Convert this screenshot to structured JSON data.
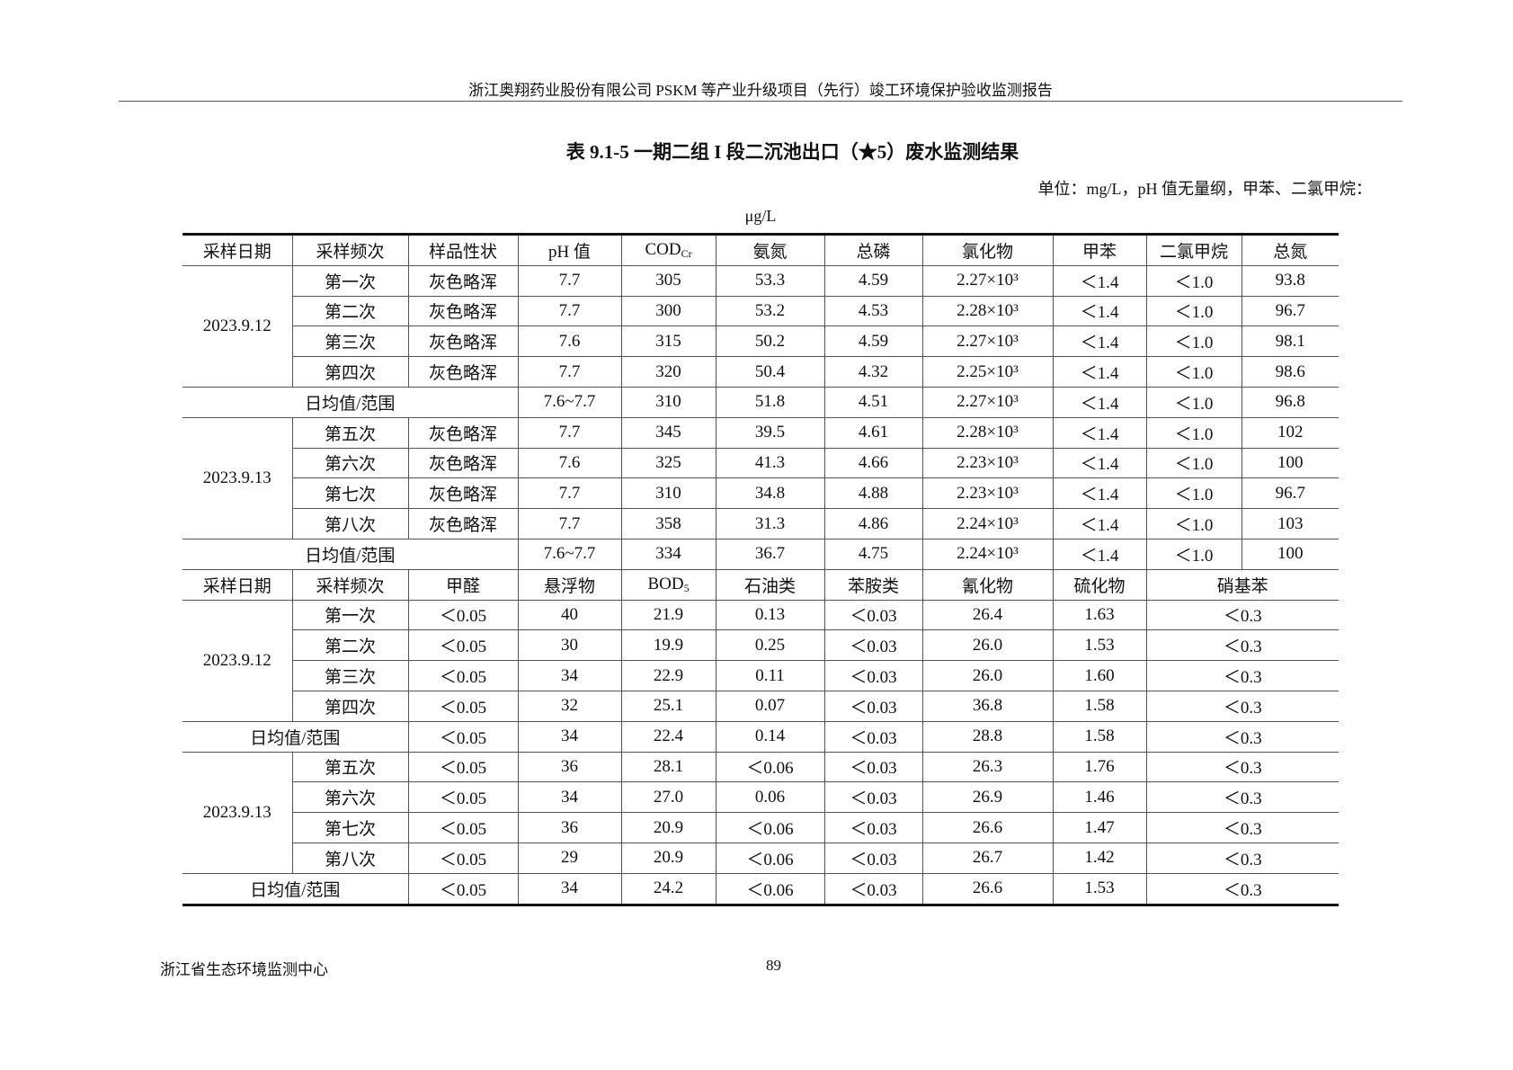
{
  "header": {
    "text": "浙江奥翔药业股份有限公司 PSKM 等产业升级项目（先行）竣工环境保护验收监测报告"
  },
  "title": "表 9.1-5  一期二组 I 段二沉池出口（★5）废水监测结果",
  "unit": {
    "line1": "单位：mg/L，pH 值无量纲，甲苯、二氯甲烷：",
    "line2": "μg/L"
  },
  "sections": [
    {
      "headers": [
        {
          "text": "采样日期"
        },
        {
          "text": "采样频次"
        },
        {
          "text": "样品性状"
        },
        {
          "text": "pH 值"
        },
        {
          "text": "COD",
          "sub": "Cr"
        },
        {
          "text": "氨氮"
        },
        {
          "text": "总磷"
        },
        {
          "text": "氯化物"
        },
        {
          "text": "甲苯"
        },
        {
          "text": "二氯甲烷"
        },
        {
          "text": "总氮"
        }
      ],
      "avg_span": 3,
      "groups": [
        {
          "date": "2023.9.12",
          "rows": [
            [
              "第一次",
              "灰色略浑",
              "7.7",
              "305",
              "53.3",
              "4.59",
              "2.27×10³",
              "＜1.4",
              "＜1.0",
              "93.8"
            ],
            [
              "第二次",
              "灰色略浑",
              "7.7",
              "300",
              "53.2",
              "4.53",
              "2.28×10³",
              "＜1.4",
              "＜1.0",
              "96.7"
            ],
            [
              "第三次",
              "灰色略浑",
              "7.6",
              "315",
              "50.2",
              "4.59",
              "2.27×10³",
              "＜1.4",
              "＜1.0",
              "98.1"
            ],
            [
              "第四次",
              "灰色略浑",
              "7.7",
              "320",
              "50.4",
              "4.32",
              "2.25×10³",
              "＜1.4",
              "＜1.0",
              "98.6"
            ]
          ],
          "avg": [
            "日均值/范围",
            "7.6~7.7",
            "310",
            "51.8",
            "4.51",
            "2.27×10³",
            "＜1.4",
            "＜1.0",
            "96.8"
          ]
        },
        {
          "date": "2023.9.13",
          "rows": [
            [
              "第五次",
              "灰色略浑",
              "7.7",
              "345",
              "39.5",
              "4.61",
              "2.28×10³",
              "＜1.4",
              "＜1.0",
              "102"
            ],
            [
              "第六次",
              "灰色略浑",
              "7.6",
              "325",
              "41.3",
              "4.66",
              "2.23×10³",
              "＜1.4",
              "＜1.0",
              "100"
            ],
            [
              "第七次",
              "灰色略浑",
              "7.7",
              "310",
              "34.8",
              "4.88",
              "2.23×10³",
              "＜1.4",
              "＜1.0",
              "96.7"
            ],
            [
              "第八次",
              "灰色略浑",
              "7.7",
              "358",
              "31.3",
              "4.86",
              "2.24×10³",
              "＜1.4",
              "＜1.0",
              "103"
            ]
          ],
          "avg": [
            "日均值/范围",
            "7.6~7.7",
            "334",
            "36.7",
            "4.75",
            "2.24×10³",
            "＜1.4",
            "＜1.0",
            "100"
          ]
        }
      ]
    },
    {
      "headers": [
        {
          "text": "采样日期"
        },
        {
          "text": "采样频次"
        },
        {
          "text": "甲醛"
        },
        {
          "text": "悬浮物"
        },
        {
          "text": "BOD",
          "sub": "5"
        },
        {
          "text": "石油类"
        },
        {
          "text": "苯胺类"
        },
        {
          "text": "氰化物"
        },
        {
          "text": "硫化物"
        },
        {
          "text": "硝基苯",
          "span": 2
        }
      ],
      "avg_span": 2,
      "last_span": 2,
      "groups": [
        {
          "date": "2023.9.12",
          "rows": [
            [
              "第一次",
              "＜0.05",
              "40",
              "21.9",
              "0.13",
              "＜0.03",
              "26.4",
              "1.63",
              "＜0.3"
            ],
            [
              "第二次",
              "＜0.05",
              "30",
              "19.9",
              "0.25",
              "＜0.03",
              "26.0",
              "1.53",
              "＜0.3"
            ],
            [
              "第三次",
              "＜0.05",
              "34",
              "22.9",
              "0.11",
              "＜0.03",
              "26.0",
              "1.60",
              "＜0.3"
            ],
            [
              "第四次",
              "＜0.05",
              "32",
              "25.1",
              "0.07",
              "＜0.03",
              "36.8",
              "1.58",
              "＜0.3"
            ]
          ],
          "avg": [
            "日均值/范围",
            "＜0.05",
            "34",
            "22.4",
            "0.14",
            "＜0.03",
            "28.8",
            "1.58",
            "＜0.3"
          ]
        },
        {
          "date": "2023.9.13",
          "rows": [
            [
              "第五次",
              "＜0.05",
              "36",
              "28.1",
              "＜0.06",
              "＜0.03",
              "26.3",
              "1.76",
              "＜0.3"
            ],
            [
              "第六次",
              "＜0.05",
              "34",
              "27.0",
              "0.06",
              "＜0.03",
              "26.9",
              "1.46",
              "＜0.3"
            ],
            [
              "第七次",
              "＜0.05",
              "36",
              "20.9",
              "＜0.06",
              "＜0.03",
              "26.6",
              "1.47",
              "＜0.3"
            ],
            [
              "第八次",
              "＜0.05",
              "29",
              "20.9",
              "＜0.06",
              "＜0.03",
              "26.7",
              "1.42",
              "＜0.3"
            ]
          ],
          "avg": [
            "日均值/范围",
            "＜0.05",
            "34",
            "24.2",
            "＜0.06",
            "＜0.03",
            "26.6",
            "1.53",
            "＜0.3"
          ]
        }
      ]
    }
  ],
  "footer": {
    "org": "浙江省生态环境监测中心",
    "page": "89"
  }
}
